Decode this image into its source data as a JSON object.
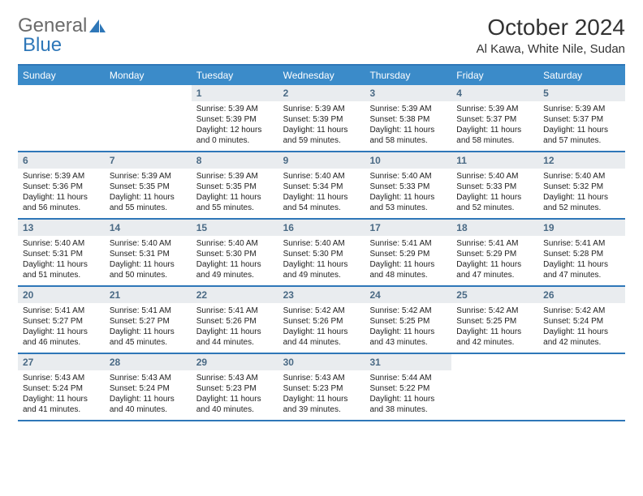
{
  "brand": {
    "part1": "General",
    "part2": "Blue"
  },
  "title": "October 2024",
  "location": "Al Kawa, White Nile, Sudan",
  "colors": {
    "header_bg": "#3b8bc9",
    "header_text": "#ffffff",
    "border": "#2e77b8",
    "daynum_bg": "#e9ecef",
    "daynum_text": "#4a6a85",
    "text": "#222222",
    "background": "#ffffff"
  },
  "typography": {
    "title_fontsize": 28,
    "location_fontsize": 15,
    "dayhdr_fontsize": 12,
    "detail_fontsize": 10
  },
  "day_headers": [
    "Sunday",
    "Monday",
    "Tuesday",
    "Wednesday",
    "Thursday",
    "Friday",
    "Saturday"
  ],
  "weeks": [
    [
      {
        "day": "",
        "sunrise": "",
        "sunset": "",
        "daylight": "",
        "empty": true
      },
      {
        "day": "",
        "sunrise": "",
        "sunset": "",
        "daylight": "",
        "empty": true
      },
      {
        "day": "1",
        "sunrise": "Sunrise: 5:39 AM",
        "sunset": "Sunset: 5:39 PM",
        "daylight": "Daylight: 12 hours and 0 minutes."
      },
      {
        "day": "2",
        "sunrise": "Sunrise: 5:39 AM",
        "sunset": "Sunset: 5:39 PM",
        "daylight": "Daylight: 11 hours and 59 minutes."
      },
      {
        "day": "3",
        "sunrise": "Sunrise: 5:39 AM",
        "sunset": "Sunset: 5:38 PM",
        "daylight": "Daylight: 11 hours and 58 minutes."
      },
      {
        "day": "4",
        "sunrise": "Sunrise: 5:39 AM",
        "sunset": "Sunset: 5:37 PM",
        "daylight": "Daylight: 11 hours and 58 minutes."
      },
      {
        "day": "5",
        "sunrise": "Sunrise: 5:39 AM",
        "sunset": "Sunset: 5:37 PM",
        "daylight": "Daylight: 11 hours and 57 minutes."
      }
    ],
    [
      {
        "day": "6",
        "sunrise": "Sunrise: 5:39 AM",
        "sunset": "Sunset: 5:36 PM",
        "daylight": "Daylight: 11 hours and 56 minutes."
      },
      {
        "day": "7",
        "sunrise": "Sunrise: 5:39 AM",
        "sunset": "Sunset: 5:35 PM",
        "daylight": "Daylight: 11 hours and 55 minutes."
      },
      {
        "day": "8",
        "sunrise": "Sunrise: 5:39 AM",
        "sunset": "Sunset: 5:35 PM",
        "daylight": "Daylight: 11 hours and 55 minutes."
      },
      {
        "day": "9",
        "sunrise": "Sunrise: 5:40 AM",
        "sunset": "Sunset: 5:34 PM",
        "daylight": "Daylight: 11 hours and 54 minutes."
      },
      {
        "day": "10",
        "sunrise": "Sunrise: 5:40 AM",
        "sunset": "Sunset: 5:33 PM",
        "daylight": "Daylight: 11 hours and 53 minutes."
      },
      {
        "day": "11",
        "sunrise": "Sunrise: 5:40 AM",
        "sunset": "Sunset: 5:33 PM",
        "daylight": "Daylight: 11 hours and 52 minutes."
      },
      {
        "day": "12",
        "sunrise": "Sunrise: 5:40 AM",
        "sunset": "Sunset: 5:32 PM",
        "daylight": "Daylight: 11 hours and 52 minutes."
      }
    ],
    [
      {
        "day": "13",
        "sunrise": "Sunrise: 5:40 AM",
        "sunset": "Sunset: 5:31 PM",
        "daylight": "Daylight: 11 hours and 51 minutes."
      },
      {
        "day": "14",
        "sunrise": "Sunrise: 5:40 AM",
        "sunset": "Sunset: 5:31 PM",
        "daylight": "Daylight: 11 hours and 50 minutes."
      },
      {
        "day": "15",
        "sunrise": "Sunrise: 5:40 AM",
        "sunset": "Sunset: 5:30 PM",
        "daylight": "Daylight: 11 hours and 49 minutes."
      },
      {
        "day": "16",
        "sunrise": "Sunrise: 5:40 AM",
        "sunset": "Sunset: 5:30 PM",
        "daylight": "Daylight: 11 hours and 49 minutes."
      },
      {
        "day": "17",
        "sunrise": "Sunrise: 5:41 AM",
        "sunset": "Sunset: 5:29 PM",
        "daylight": "Daylight: 11 hours and 48 minutes."
      },
      {
        "day": "18",
        "sunrise": "Sunrise: 5:41 AM",
        "sunset": "Sunset: 5:29 PM",
        "daylight": "Daylight: 11 hours and 47 minutes."
      },
      {
        "day": "19",
        "sunrise": "Sunrise: 5:41 AM",
        "sunset": "Sunset: 5:28 PM",
        "daylight": "Daylight: 11 hours and 47 minutes."
      }
    ],
    [
      {
        "day": "20",
        "sunrise": "Sunrise: 5:41 AM",
        "sunset": "Sunset: 5:27 PM",
        "daylight": "Daylight: 11 hours and 46 minutes."
      },
      {
        "day": "21",
        "sunrise": "Sunrise: 5:41 AM",
        "sunset": "Sunset: 5:27 PM",
        "daylight": "Daylight: 11 hours and 45 minutes."
      },
      {
        "day": "22",
        "sunrise": "Sunrise: 5:41 AM",
        "sunset": "Sunset: 5:26 PM",
        "daylight": "Daylight: 11 hours and 44 minutes."
      },
      {
        "day": "23",
        "sunrise": "Sunrise: 5:42 AM",
        "sunset": "Sunset: 5:26 PM",
        "daylight": "Daylight: 11 hours and 44 minutes."
      },
      {
        "day": "24",
        "sunrise": "Sunrise: 5:42 AM",
        "sunset": "Sunset: 5:25 PM",
        "daylight": "Daylight: 11 hours and 43 minutes."
      },
      {
        "day": "25",
        "sunrise": "Sunrise: 5:42 AM",
        "sunset": "Sunset: 5:25 PM",
        "daylight": "Daylight: 11 hours and 42 minutes."
      },
      {
        "day": "26",
        "sunrise": "Sunrise: 5:42 AM",
        "sunset": "Sunset: 5:24 PM",
        "daylight": "Daylight: 11 hours and 42 minutes."
      }
    ],
    [
      {
        "day": "27",
        "sunrise": "Sunrise: 5:43 AM",
        "sunset": "Sunset: 5:24 PM",
        "daylight": "Daylight: 11 hours and 41 minutes."
      },
      {
        "day": "28",
        "sunrise": "Sunrise: 5:43 AM",
        "sunset": "Sunset: 5:24 PM",
        "daylight": "Daylight: 11 hours and 40 minutes."
      },
      {
        "day": "29",
        "sunrise": "Sunrise: 5:43 AM",
        "sunset": "Sunset: 5:23 PM",
        "daylight": "Daylight: 11 hours and 40 minutes."
      },
      {
        "day": "30",
        "sunrise": "Sunrise: 5:43 AM",
        "sunset": "Sunset: 5:23 PM",
        "daylight": "Daylight: 11 hours and 39 minutes."
      },
      {
        "day": "31",
        "sunrise": "Sunrise: 5:44 AM",
        "sunset": "Sunset: 5:22 PM",
        "daylight": "Daylight: 11 hours and 38 minutes."
      },
      {
        "day": "",
        "sunrise": "",
        "sunset": "",
        "daylight": "",
        "empty": true
      },
      {
        "day": "",
        "sunrise": "",
        "sunset": "",
        "daylight": "",
        "empty": true
      }
    ]
  ]
}
